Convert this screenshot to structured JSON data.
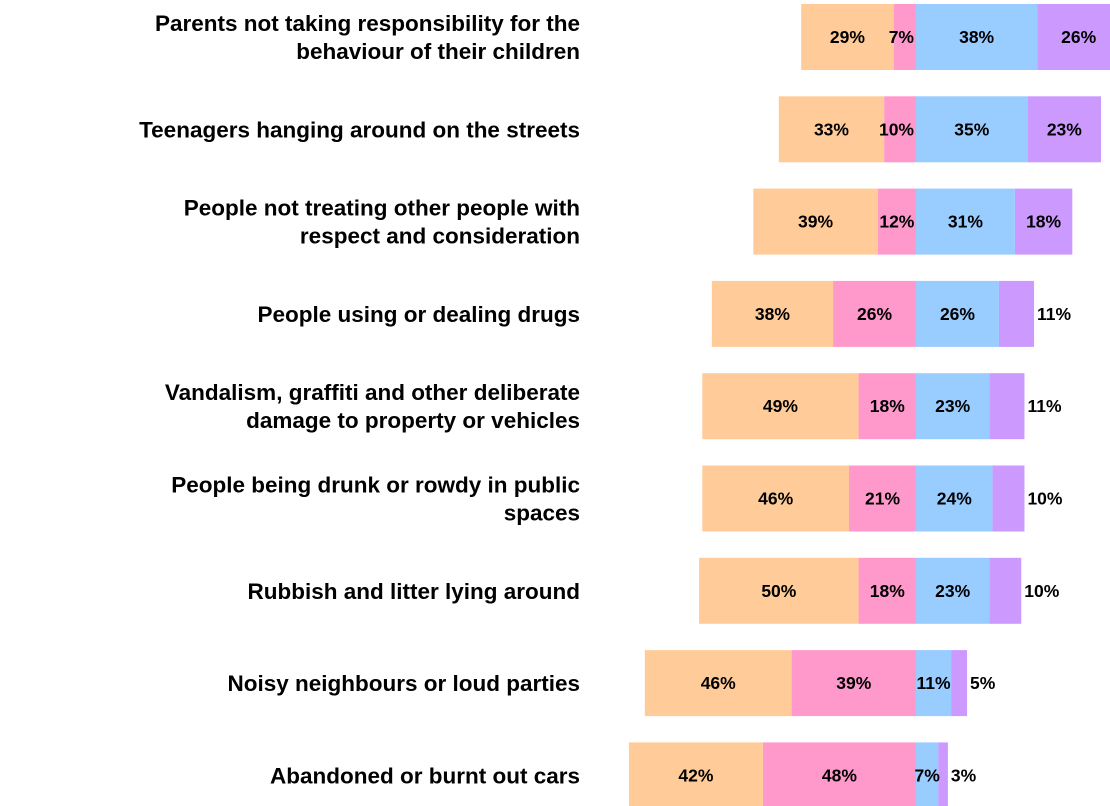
{
  "chart_data": {
    "type": "bar",
    "stacked": true,
    "diverging": true,
    "orientation": "horizontal",
    "title": "",
    "xlabel": "",
    "ylabel": "",
    "legend": "none",
    "grid": false,
    "categories": [
      [
        "Parents not taking responsibility for the",
        "behaviour of their children"
      ],
      [
        "Teenagers hanging around on the streets"
      ],
      [
        "People not treating other people with",
        "respect and consideration"
      ],
      [
        "People using or dealing drugs"
      ],
      [
        "Vandalism, graffiti and other deliberate",
        "damage to property or vehicles"
      ],
      [
        "People being drunk or rowdy in public",
        "spaces"
      ],
      [
        "Rubbish and litter lying around"
      ],
      [
        "Noisy neighbours or loud parties"
      ],
      [
        "Abandoned or burnt out cars"
      ]
    ],
    "series": [
      {
        "side": "left",
        "color": "#ff99cc",
        "values": [
          7,
          10,
          12,
          26,
          18,
          21,
          18,
          39,
          48
        ],
        "labels": [
          "7%",
          "10%",
          "12%",
          "26%",
          "18%",
          "21%",
          "18%",
          "39%",
          "48%"
        ]
      },
      {
        "side": "left",
        "color": "#ffcc99",
        "values": [
          29,
          33,
          39,
          38,
          49,
          46,
          50,
          46,
          42
        ],
        "labels": [
          "29%",
          "33%",
          "39%",
          "38%",
          "49%",
          "46%",
          "50%",
          "46%",
          "42%"
        ]
      },
      {
        "side": "right",
        "color": "#99ccff",
        "values": [
          38,
          35,
          31,
          26,
          23,
          24,
          23,
          11,
          7
        ],
        "labels": [
          "38%",
          "35%",
          "31%",
          "26%",
          "23%",
          "24%",
          "23%",
          "11%",
          "7%"
        ]
      },
      {
        "side": "right",
        "color": "#cc99ff",
        "values": [
          26,
          23,
          18,
          11,
          11,
          10,
          10,
          5,
          3
        ],
        "labels": [
          "26%",
          "23%",
          "18%",
          "11%",
          "11%",
          "10%",
          "10%",
          "5%",
          "3%"
        ]
      }
    ]
  }
}
